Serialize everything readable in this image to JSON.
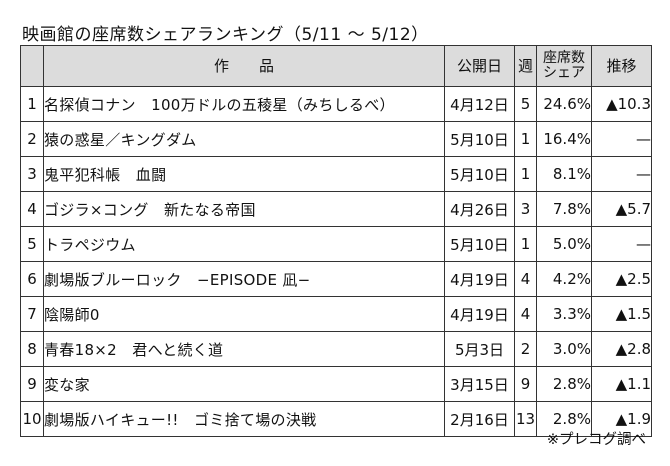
{
  "title": "映画館の座席数シェアランキング（5/11 ～ 5/12）",
  "columns": {
    "title": "作　　品",
    "release": "公開日",
    "week": "週",
    "share_line1": "座席数",
    "share_line2": "シェア",
    "trend": "推移"
  },
  "rows": [
    {
      "rank": "1",
      "title": "名探偵コナン　100万ドルの五稜星（みちしるべ）",
      "release": "4月12日",
      "week": "5",
      "share": "24.6%",
      "trend": "▲10.3"
    },
    {
      "rank": "2",
      "title": "猿の惑星／キングダム",
      "release": "5月10日",
      "week": "1",
      "share": "16.4%",
      "trend": "—"
    },
    {
      "rank": "3",
      "title": "鬼平犯科帳　血闘",
      "release": "5月10日",
      "week": "1",
      "share": "8.1%",
      "trend": "—"
    },
    {
      "rank": "4",
      "title": "ゴジラ×コング　新たなる帝国",
      "release": "4月26日",
      "week": "3",
      "share": "7.8%",
      "trend": "▲5.7"
    },
    {
      "rank": "5",
      "title": "トラペジウム",
      "release": "5月10日",
      "week": "1",
      "share": "5.0%",
      "trend": "—"
    },
    {
      "rank": "6",
      "title": "劇場版ブルーロック　−EPISODE 凪−",
      "release": "4月19日",
      "week": "4",
      "share": "4.2%",
      "trend": "▲2.5"
    },
    {
      "rank": "7",
      "title": "陰陽師0",
      "release": "4月19日",
      "week": "4",
      "share": "3.3%",
      "trend": "▲1.5"
    },
    {
      "rank": "8",
      "title": "青春18×2　君へと続く道",
      "release": "5月3日",
      "week": "2",
      "share": "3.0%",
      "trend": "▲2.8"
    },
    {
      "rank": "9",
      "title": "変な家",
      "release": "3月15日",
      "week": "9",
      "share": "2.8%",
      "trend": "▲1.1"
    },
    {
      "rank": "10",
      "title": "劇場版ハイキュー!!　ゴミ捨て場の決戦",
      "release": "2月16日",
      "week": "13",
      "share": "2.8%",
      "trend": "▲1.9"
    }
  ],
  "source": "※プレコグ調べ"
}
